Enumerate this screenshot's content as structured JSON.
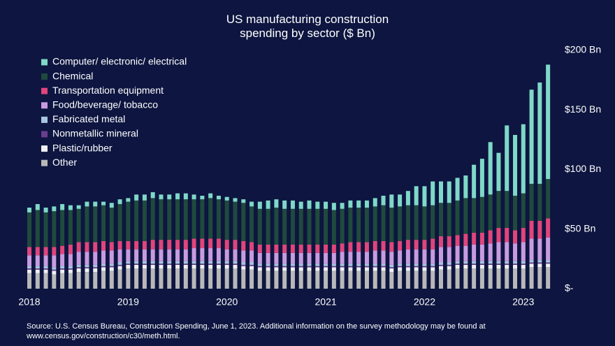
{
  "chart_data": {
    "type": "stacked_bar",
    "title": "US manufacturing construction spending by sector ($ Bn)",
    "source": [
      "Source: U.S. Census Bureau, Construction Spending, June 1, 2023. Additional information on the survey methodology may be found at",
      "www.census.gov/construction/c30/meth.html."
    ],
    "categories": [
      "2018",
      null,
      null,
      null,
      null,
      null,
      null,
      null,
      null,
      null,
      null,
      null,
      "2019",
      null,
      null,
      null,
      null,
      null,
      null,
      null,
      null,
      null,
      null,
      null,
      "2020",
      null,
      null,
      null,
      null,
      null,
      null,
      null,
      null,
      null,
      null,
      null,
      "2021",
      null,
      null,
      null,
      null,
      null,
      null,
      null,
      null,
      null,
      null,
      null,
      "2022",
      null,
      null,
      null,
      null,
      null,
      null,
      null,
      null,
      null,
      null,
      null,
      "2023",
      null,
      null,
      null
    ],
    "ylim": [
      0,
      200
    ],
    "yticks": [
      {
        "value": 0,
        "label": "$-"
      },
      {
        "value": 50,
        "label": "$50 Bn"
      },
      {
        "value": 100,
        "label": "$100 Bn"
      },
      {
        "value": 150,
        "label": "$150 Bn"
      },
      {
        "value": 200,
        "label": "$200 Bn"
      }
    ],
    "legend": "upper left",
    "series": [
      {
        "name": "Computer/ electronic/ electrical",
        "color": "#7fd8c8",
        "values": [
          4,
          5,
          4,
          4,
          5,
          4,
          3,
          4,
          4,
          3,
          4,
          4,
          3,
          5,
          5,
          5,
          4,
          4,
          5,
          5,
          4,
          3,
          4,
          3,
          3,
          3,
          3,
          4,
          6,
          7,
          7,
          7,
          7,
          6,
          7,
          6,
          6,
          6,
          5,
          6,
          6,
          6,
          7,
          8,
          11,
          10,
          12,
          16,
          17,
          20,
          18,
          18,
          19,
          19,
          28,
          32,
          44,
          32,
          55,
          51,
          58,
          79,
          85,
          96
        ]
      },
      {
        "name": "Chemical",
        "color": "#1f4a3c",
        "values": [
          29,
          31,
          29,
          30,
          30,
          29,
          28,
          30,
          30,
          30,
          29,
          31,
          33,
          34,
          34,
          35,
          34,
          34,
          34,
          34,
          33,
          33,
          34,
          33,
          33,
          32,
          32,
          30,
          30,
          30,
          31,
          30,
          30,
          30,
          30,
          30,
          30,
          29,
          29,
          29,
          29,
          29,
          29,
          30,
          29,
          29,
          29,
          29,
          28,
          28,
          28,
          28,
          29,
          30,
          29,
          30,
          30,
          31,
          31,
          29,
          29,
          31,
          31,
          33
        ]
      },
      {
        "name": "Transportation equipment",
        "color": "#e0457b",
        "values": [
          7,
          7,
          7,
          7,
          7,
          8,
          8,
          8,
          8,
          8,
          7,
          7,
          7,
          7,
          7,
          8,
          8,
          8,
          8,
          8,
          8,
          8,
          8,
          8,
          8,
          8,
          8,
          7,
          7,
          7,
          7,
          7,
          7,
          7,
          7,
          7,
          7,
          7,
          7,
          8,
          8,
          8,
          8,
          8,
          8,
          8,
          8,
          8,
          8,
          9,
          9,
          9,
          9,
          10,
          10,
          10,
          11,
          12,
          12,
          11,
          12,
          15,
          15,
          16
        ]
      },
      {
        "name": "Food/beverage/ tobacco",
        "color": "#c89be0",
        "values": [
          9,
          9,
          9,
          10,
          10,
          10,
          11,
          11,
          11,
          11,
          11,
          11,
          10,
          10,
          10,
          10,
          10,
          10,
          10,
          10,
          11,
          11,
          11,
          11,
          10,
          10,
          10,
          10,
          9,
          9,
          9,
          9,
          9,
          9,
          9,
          9,
          9,
          9,
          10,
          10,
          10,
          10,
          11,
          11,
          11,
          11,
          12,
          12,
          12,
          12,
          13,
          13,
          13,
          13,
          14,
          14,
          15,
          16,
          16,
          15,
          16,
          18,
          18,
          19
        ]
      },
      {
        "name": "Fabricated metal",
        "color": "#a8c6e0",
        "values": [
          2,
          2,
          2,
          2,
          2,
          2,
          2,
          2,
          2,
          2,
          2,
          2,
          2,
          2,
          2,
          2,
          2,
          2,
          2,
          2,
          2,
          2,
          2,
          2,
          2,
          2,
          2,
          2,
          2,
          2,
          2,
          2,
          2,
          2,
          2,
          2,
          2,
          2,
          2,
          2,
          2,
          2,
          2,
          2,
          2,
          2,
          2,
          2,
          2,
          2,
          2,
          2,
          2,
          2,
          2,
          2,
          2,
          2,
          2,
          2,
          2,
          2,
          2,
          2
        ]
      },
      {
        "name": "Nonmetallic mineral",
        "color": "#6a3d8f",
        "values": [
          1,
          1,
          1,
          1,
          1,
          1,
          1,
          1,
          1,
          1,
          1,
          1,
          1,
          1,
          1,
          1,
          1,
          1,
          1,
          1,
          1,
          1,
          1,
          1,
          1,
          1,
          1,
          1,
          1,
          1,
          1,
          1,
          1,
          1,
          1,
          1,
          1,
          1,
          1,
          1,
          1,
          1,
          1,
          1,
          1,
          1,
          1,
          1,
          1,
          1,
          1,
          1,
          1,
          1,
          1,
          1,
          1,
          1,
          1,
          1,
          1,
          1,
          1,
          1
        ]
      },
      {
        "name": "Plastic/rubber",
        "color": "#f0f0f0",
        "values": [
          3,
          3,
          3,
          3,
          3,
          3,
          3,
          3,
          3,
          3,
          3,
          3,
          3,
          3,
          3,
          3,
          3,
          3,
          3,
          3,
          3,
          3,
          3,
          3,
          3,
          3,
          3,
          3,
          3,
          3,
          3,
          3,
          3,
          3,
          3,
          3,
          3,
          3,
          3,
          3,
          3,
          3,
          3,
          3,
          3,
          3,
          3,
          3,
          3,
          3,
          3,
          3,
          3,
          3,
          3,
          3,
          3,
          3,
          3,
          3,
          3,
          3,
          3,
          3
        ]
      },
      {
        "name": "Other",
        "color": "#b8b8b8",
        "values": [
          13,
          13,
          13,
          12,
          13,
          13,
          14,
          14,
          14,
          15,
          15,
          16,
          17,
          17,
          17,
          17,
          17,
          17,
          17,
          17,
          17,
          17,
          17,
          17,
          17,
          17,
          16,
          16,
          15,
          15,
          15,
          15,
          15,
          15,
          15,
          15,
          15,
          15,
          15,
          15,
          15,
          15,
          15,
          15,
          14,
          15,
          15,
          15,
          15,
          15,
          16,
          16,
          17,
          17,
          17,
          17,
          17,
          17,
          17,
          17,
          17,
          18,
          18,
          18
        ]
      }
    ]
  }
}
